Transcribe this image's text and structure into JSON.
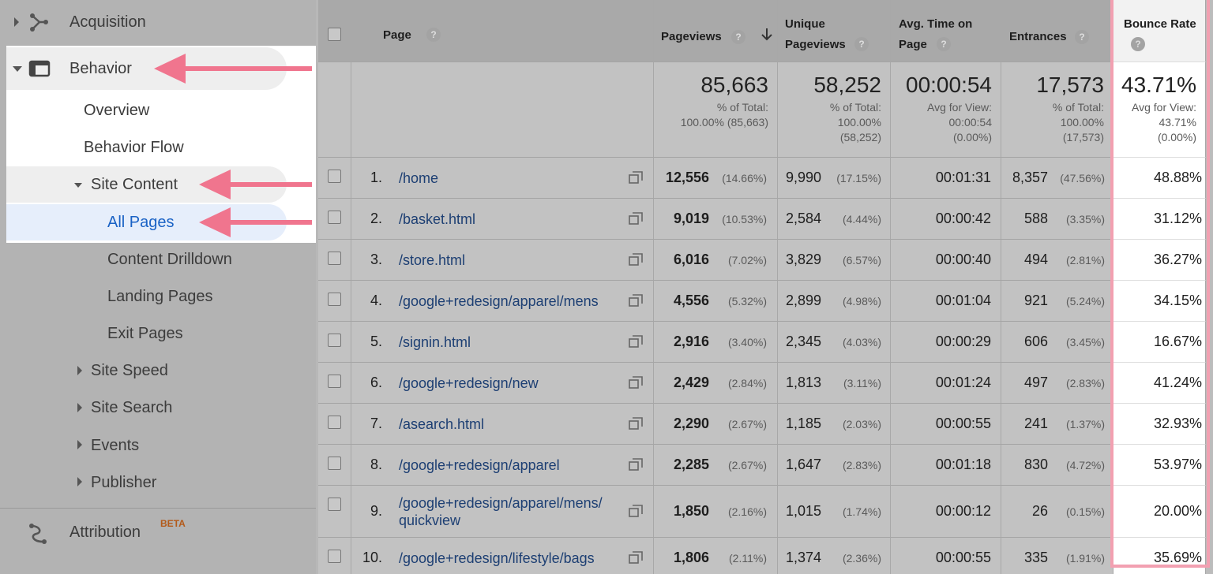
{
  "sidebar": {
    "items": [
      "Acquisition",
      "Behavior",
      "Overview",
      "Behavior Flow",
      "Site Content",
      "All Pages",
      "Content Drilldown",
      "Landing Pages",
      "Exit Pages",
      "Site Speed",
      "Site Search",
      "Events",
      "Publisher",
      "Attribution"
    ],
    "badge": "BETA"
  },
  "table": {
    "help_icon": "?",
    "headers": [
      "Page",
      "Pageviews",
      "Unique\nPageviews",
      "Avg. Time on\nPage",
      "Entrances",
      "Bounce Rate"
    ],
    "totals": [
      {
        "value": "85,663",
        "note": "% of Total:\n100.00% (85,663)"
      },
      {
        "value": "58,252",
        "note": "% of Total:\n100.00%\n(58,252)"
      },
      {
        "value": "00:00:54",
        "note": "Avg for View:\n00:00:54\n(0.00%)"
      },
      {
        "value": "17,573",
        "note": "% of Total:\n100.00%\n(17,573)"
      },
      {
        "value": "43.71%",
        "note": "Avg for View:\n43.71%\n(0.00%)"
      }
    ],
    "rows": [
      {
        "index": "1.",
        "page": "/home",
        "pageviews": "12,556",
        "pageviews_pct": "(14.66%)",
        "unique_pageviews": "9,990",
        "unique_pct": "(17.15%)",
        "avg_time": "00:01:31",
        "entrances": "8,357",
        "entrances_pct": "(47.56%)",
        "bounce_rate": "48.88%"
      },
      {
        "index": "2.",
        "page": "/basket.html",
        "pageviews": "9,019",
        "pageviews_pct": "(10.53%)",
        "unique_pageviews": "2,584",
        "unique_pct": "(4.44%)",
        "avg_time": "00:00:42",
        "entrances": "588",
        "entrances_pct": "(3.35%)",
        "bounce_rate": "31.12%"
      },
      {
        "index": "3.",
        "page": "/store.html",
        "pageviews": "6,016",
        "pageviews_pct": "(7.02%)",
        "unique_pageviews": "3,829",
        "unique_pct": "(6.57%)",
        "avg_time": "00:00:40",
        "entrances": "494",
        "entrances_pct": "(2.81%)",
        "bounce_rate": "36.27%"
      },
      {
        "index": "4.",
        "page": "/google+redesign/apparel/mens",
        "pageviews": "4,556",
        "pageviews_pct": "(5.32%)",
        "unique_pageviews": "2,899",
        "unique_pct": "(4.98%)",
        "avg_time": "00:01:04",
        "entrances": "921",
        "entrances_pct": "(5.24%)",
        "bounce_rate": "34.15%"
      },
      {
        "index": "5.",
        "page": "/signin.html",
        "pageviews": "2,916",
        "pageviews_pct": "(3.40%)",
        "unique_pageviews": "2,345",
        "unique_pct": "(4.03%)",
        "avg_time": "00:00:29",
        "entrances": "606",
        "entrances_pct": "(3.45%)",
        "bounce_rate": "16.67%"
      },
      {
        "index": "6.",
        "page": "/google+redesign/new",
        "pageviews": "2,429",
        "pageviews_pct": "(2.84%)",
        "unique_pageviews": "1,813",
        "unique_pct": "(3.11%)",
        "avg_time": "00:01:24",
        "entrances": "497",
        "entrances_pct": "(2.83%)",
        "bounce_rate": "41.24%"
      },
      {
        "index": "7.",
        "page": "/asearch.html",
        "pageviews": "2,290",
        "pageviews_pct": "(2.67%)",
        "unique_pageviews": "1,185",
        "unique_pct": "(2.03%)",
        "avg_time": "00:00:55",
        "entrances": "241",
        "entrances_pct": "(1.37%)",
        "bounce_rate": "32.93%"
      },
      {
        "index": "8.",
        "page": "/google+redesign/apparel",
        "pageviews": "2,285",
        "pageviews_pct": "(2.67%)",
        "unique_pageviews": "1,647",
        "unique_pct": "(2.83%)",
        "avg_time": "00:01:18",
        "entrances": "830",
        "entrances_pct": "(4.72%)",
        "bounce_rate": "53.97%"
      },
      {
        "index": "9.",
        "page": "/google+redesign/apparel/mens/\nquickview",
        "pageviews": "1,850",
        "pageviews_pct": "(2.16%)",
        "unique_pageviews": "1,015",
        "unique_pct": "(1.74%)",
        "avg_time": "00:00:12",
        "entrances": "26",
        "entrances_pct": "(0.15%)",
        "bounce_rate": "20.00%"
      },
      {
        "index": "10.",
        "page": "/google+redesign/lifestyle/bags",
        "pageviews": "1,806",
        "pageviews_pct": "(2.11%)",
        "unique_pageviews": "1,374",
        "unique_pct": "(2.36%)",
        "avg_time": "00:00:55",
        "entrances": "335",
        "entrances_pct": "(1.91%)",
        "bounce_rate": "35.69%"
      }
    ]
  }
}
